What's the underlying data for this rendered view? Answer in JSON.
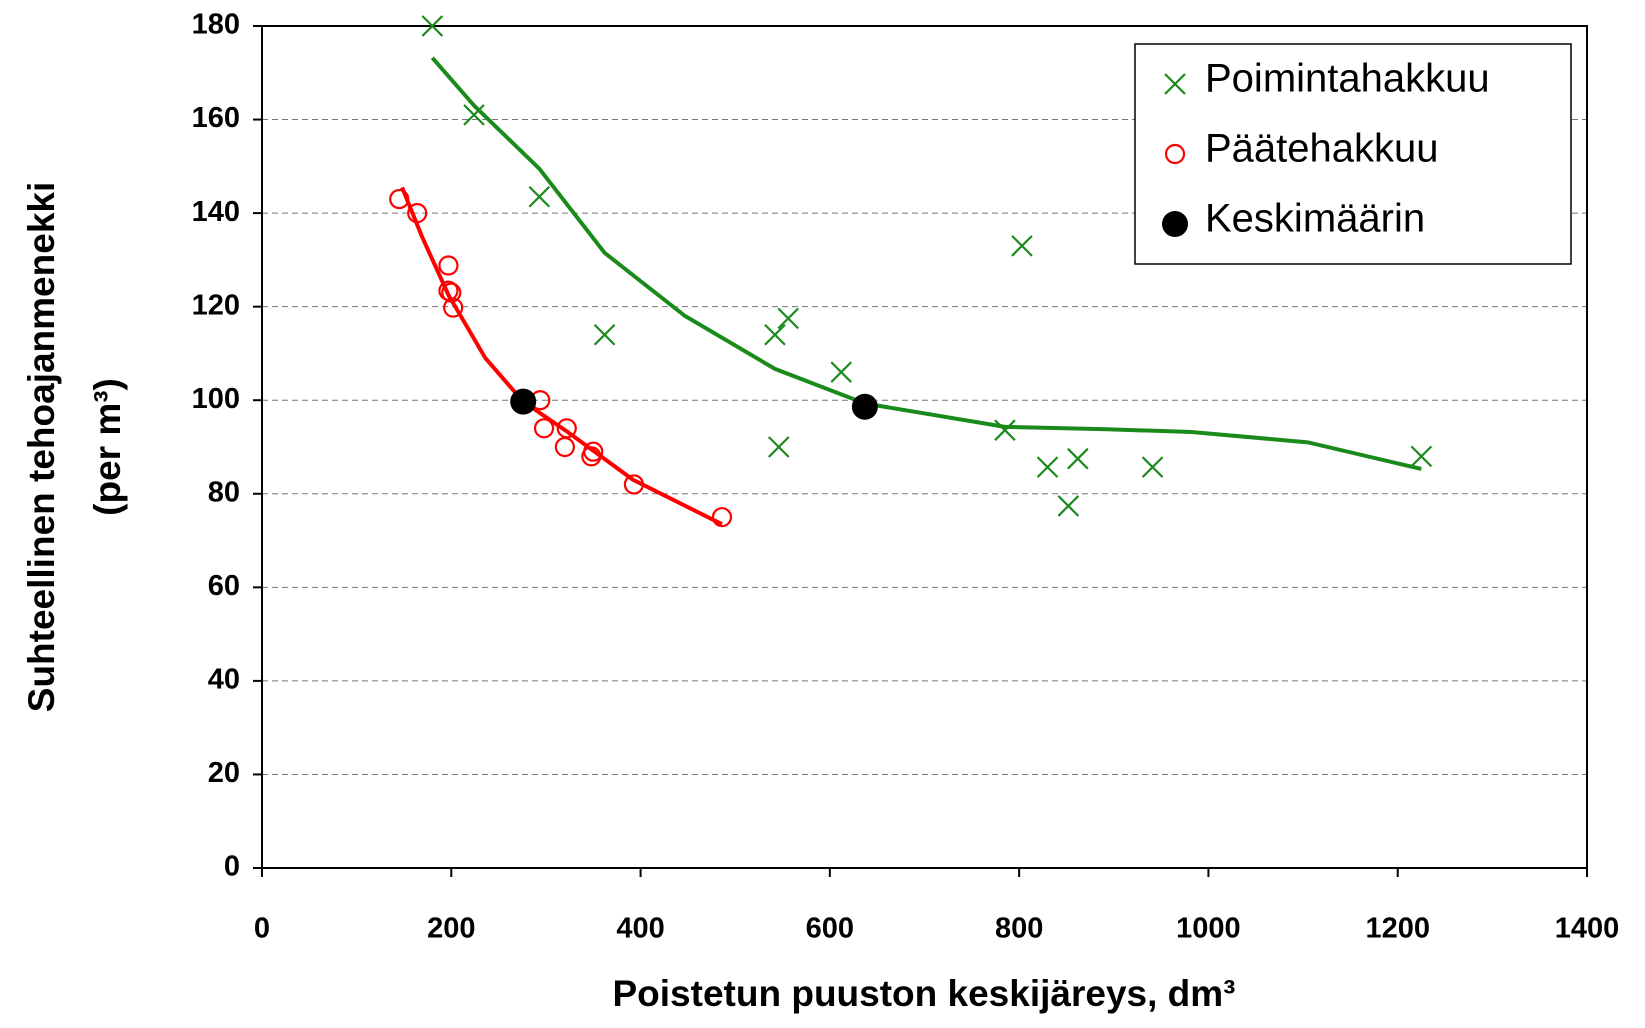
{
  "chart_data": {
    "type": "scatter",
    "x_label": "Poistetun puuston keskijäreys, dm³",
    "y_label": [
      "Suhteellinen tehoajanmenekki",
      "(per m³)"
    ],
    "xlim": [
      0,
      1400
    ],
    "xticks": [
      0,
      200,
      400,
      600,
      800,
      1000,
      1200,
      1400
    ],
    "ylim": [
      0,
      180
    ],
    "yticks": [
      0,
      20,
      40,
      60,
      80,
      100,
      120,
      140,
      160,
      180
    ],
    "grid": true,
    "legend": "upper right",
    "series": [
      {
        "name": "Poimintahakkuu",
        "color": "#1a8a1a",
        "marker": "x",
        "x": [
          180,
          224,
          293,
          362,
          542,
          556,
          546,
          612,
          803,
          785,
          830,
          862,
          852,
          941,
          1225
        ],
        "values": [
          180,
          161,
          143.5,
          114,
          114,
          117.5,
          90,
          106,
          133,
          93.6,
          85.7,
          87.5,
          77.4,
          85.7,
          88
        ],
        "trend": {
          "x": [
            180,
            224,
            293,
            362,
            447,
            542,
            637,
            785,
            893,
            982,
            1105,
            1225
          ],
          "values": [
            173.2,
            163,
            149.5,
            131.5,
            118,
            106.7,
            99.3,
            94.3,
            93.8,
            93.2,
            91,
            85.3
          ]
        }
      },
      {
        "name": "Päätehakkuu",
        "color": "#ff0000",
        "marker": "o",
        "x": [
          145,
          164,
          197,
          197,
          200,
          202,
          294,
          298,
          322,
          320,
          348,
          350,
          393,
          486
        ],
        "values": [
          143,
          140,
          128.8,
          123.4,
          123,
          119.8,
          100,
          94,
          94,
          90,
          88,
          89,
          82,
          75
        ],
        "trend": {
          "x": [
            148,
            169,
            197,
            236,
            276,
            323,
            392,
            486
          ],
          "values": [
            145.5,
            135,
            122.5,
            109,
            99.7,
            93.2,
            83,
            73.5
          ]
        }
      },
      {
        "name": "Keskimäärin",
        "color": "#000000",
        "marker": "dot",
        "x": [
          276,
          637
        ],
        "values": [
          99.7,
          98.6
        ]
      }
    ]
  }
}
